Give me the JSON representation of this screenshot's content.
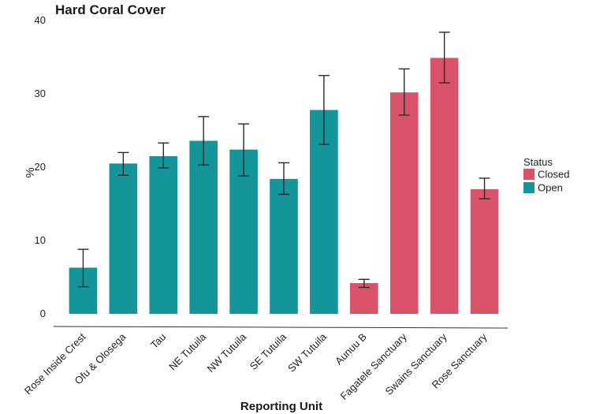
{
  "chart_data": {
    "type": "bar",
    "title": "Hard Coral Cover",
    "xlabel": "Reporting Unit",
    "ylabel": "%",
    "ylim": [
      0,
      40
    ],
    "yticks": [
      "0",
      "10",
      "20",
      "30",
      "40"
    ],
    "grid": false,
    "categories": [
      "Rose Inside Crest",
      "Ofu & Olosega",
      "Tau",
      "NE Tutuila",
      "NW Tutuila",
      "SE Tutuila",
      "SW Tutuila",
      "Aunuu B",
      "Fagatele Sanctuary",
      "Swains Sanctuary",
      "Rose Sanctuary"
    ],
    "values": [
      6.3,
      20.5,
      21.5,
      23.6,
      22.4,
      18.4,
      27.8,
      4.2,
      30.2,
      34.9,
      17.0
    ],
    "error_low": [
      3.7,
      18.9,
      19.9,
      20.3,
      18.8,
      16.3,
      23.1,
      3.6,
      27.1,
      31.5,
      15.7
    ],
    "error_high": [
      8.8,
      22.0,
      23.3,
      26.9,
      25.9,
      20.6,
      32.5,
      4.7,
      33.4,
      38.4,
      18.5
    ],
    "status": [
      "Open",
      "Open",
      "Open",
      "Open",
      "Open",
      "Open",
      "Open",
      "Closed",
      "Closed",
      "Closed",
      "Closed"
    ],
    "legend": {
      "title": "Status",
      "position": "right",
      "entries": [
        {
          "label": "Closed",
          "color": "#d9546a"
        },
        {
          "label": "Open",
          "color": "#14959a"
        }
      ]
    }
  }
}
